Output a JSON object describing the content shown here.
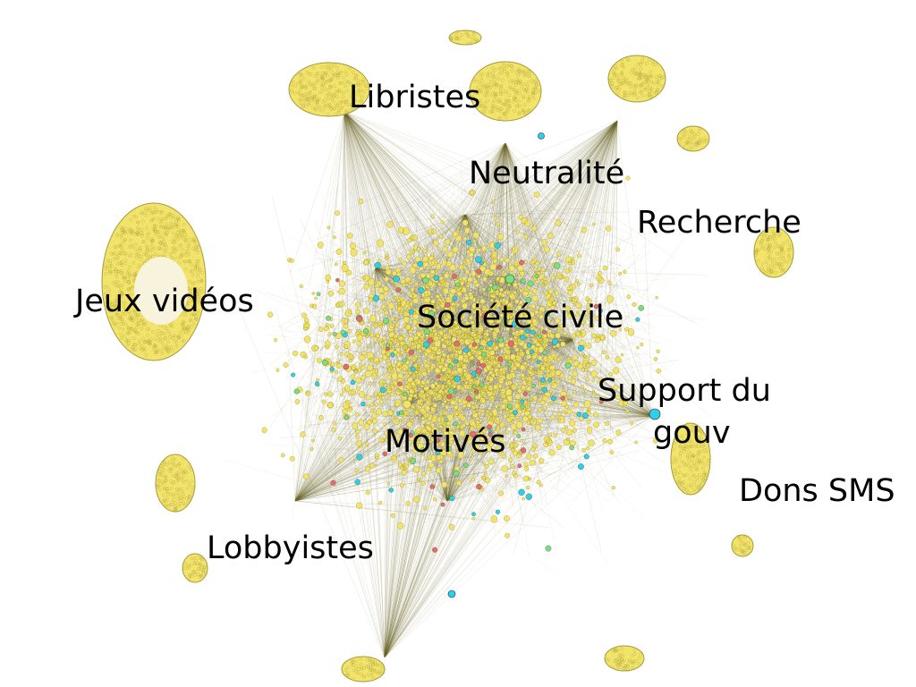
{
  "labels": {
    "libristes": "Libristes",
    "neutralite": "Neutralité",
    "recherche": "Recherche",
    "jeux_videos": "Jeux vidéos",
    "societe_civile": "Société civile",
    "support_du_gouv_line1": "Support du",
    "support_du_gouv_line2": "gouv",
    "motives": "Motivés",
    "dons_sms": "Dons SMS",
    "lobbyistes": "Lobbyistes"
  },
  "colors": {
    "node_fill": "#f2e36a",
    "node_stroke": "#a49a3a",
    "edge": "#6e6a28",
    "node_cyan": "#2fd0e6",
    "node_green": "#7be07b",
    "node_red": "#e86a6a"
  }
}
